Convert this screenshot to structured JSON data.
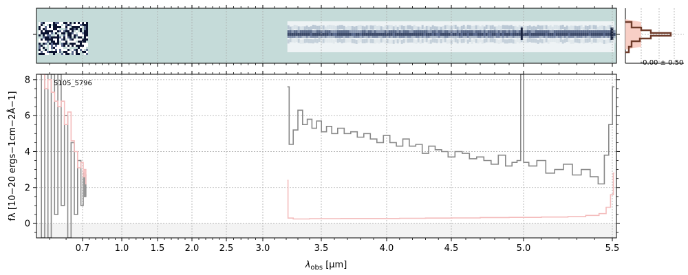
{
  "colors": {
    "flux": "#888888",
    "error": "#f4bcbc",
    "twod_bg": "#c5dbd9",
    "twod_trace": "#3a4868",
    "profile_line": "#6e3b2a",
    "profile_fill": "#f8cfc6",
    "grid": "#aaaaaa",
    "zero_band": "#f3f3f3"
  },
  "chart_data": [
    {
      "type": "line",
      "panel": "spectrum",
      "object_label": "5105_5796",
      "xlabel": "λobs [μm]",
      "xlabel_main": "λ",
      "xlabel_sub": "obs",
      "xlabel_unit": " [μm]",
      "ylabel": "fλ [10−20 ergs−1cm−2Å−1]",
      "xticks": [
        0.7,
        1.0,
        1.5,
        2.0,
        2.5,
        3.0,
        3.5,
        4.0,
        4.5,
        5.0,
        5.5
      ],
      "xtick_labels": [
        "0.7",
        "1.0",
        "1.5",
        "2.0",
        "2.5",
        "3.0",
        "3.5",
        "4.0",
        "4.5",
        "5.0",
        "5.5"
      ],
      "yticks": [
        0,
        2,
        4,
        6,
        8
      ],
      "ytick_labels": [
        "0",
        "2",
        "4",
        "6",
        "8"
      ],
      "ylim": [
        -0.8,
        8.3
      ],
      "xlim": [
        0.56,
        5.52
      ],
      "grid": true,
      "series": [
        {
          "role": "flux",
          "segments": [
            {
              "x": [
                0.57,
                0.58,
                0.59,
                0.6,
                0.61,
                0.62,
                0.63,
                0.64,
                0.65,
                0.66,
                0.67,
                0.68,
                0.69,
                0.7,
                0.71,
                0.72,
                0.73
              ],
              "y": [
                8.3,
                -0.8,
                8.3,
                -0.8,
                8.3,
                0.5,
                8.3,
                1.0,
                6.0,
                -0.8,
                4.5,
                0.5,
                3.5,
                1.0,
                2.8,
                1.5,
                2.7
              ]
            },
            {
              "x": [
                3.21,
                3.24,
                3.28,
                3.32,
                3.36,
                3.4,
                3.44,
                3.48,
                3.52,
                3.56,
                3.6,
                3.65,
                3.7,
                3.75,
                3.8,
                3.85,
                3.9,
                3.95,
                4.0,
                4.05,
                4.1,
                4.15,
                4.2,
                4.25,
                4.3,
                4.35,
                4.4,
                4.45,
                4.5,
                4.55,
                4.6,
                4.65,
                4.7,
                4.75,
                4.8,
                4.85,
                4.9,
                4.94,
                4.97,
                4.99,
                5.01,
                5.05,
                5.1,
                5.15,
                5.2,
                5.25,
                5.3,
                5.35,
                5.4,
                5.44,
                5.47,
                5.49,
                5.51
              ],
              "y": [
                7.6,
                4.4,
                5.2,
                6.3,
                5.5,
                5.8,
                5.3,
                5.7,
                5.1,
                5.4,
                5.0,
                5.3,
                5.0,
                5.1,
                4.8,
                5.0,
                4.7,
                4.5,
                4.9,
                4.5,
                4.3,
                4.7,
                4.3,
                4.4,
                3.9,
                4.3,
                4.1,
                4.0,
                3.7,
                4.0,
                3.9,
                3.6,
                3.7,
                3.5,
                3.3,
                3.8,
                3.2,
                3.4,
                3.5,
                8.3,
                3.4,
                3.2,
                3.5,
                2.8,
                3.0,
                3.3,
                2.7,
                3.0,
                2.6,
                2.2,
                3.8,
                5.5,
                7.6
              ]
            }
          ]
        },
        {
          "role": "error",
          "segments": [
            {
              "x": [
                0.57,
                0.58,
                0.59,
                0.6,
                0.61,
                0.62,
                0.63,
                0.64,
                0.65,
                0.66,
                0.67,
                0.68,
                0.69,
                0.7,
                0.71,
                0.72,
                0.73
              ],
              "y": [
                8.3,
                8.3,
                7.5,
                8.0,
                7.3,
                6.8,
                6.5,
                6.8,
                5.5,
                6.2,
                4.6,
                4.0,
                3.1,
                3.4,
                2.6,
                3.0,
                2.2
              ]
            },
            {
              "x": [
                3.21,
                3.22,
                3.3,
                3.5,
                3.8,
                4.0,
                4.2,
                4.4,
                4.6,
                4.8,
                5.0,
                5.2,
                5.3,
                5.4,
                5.45,
                5.48,
                5.5,
                5.51
              ],
              "y": [
                2.4,
                0.3,
                0.25,
                0.27,
                0.28,
                0.28,
                0.29,
                0.3,
                0.31,
                0.33,
                0.34,
                0.36,
                0.38,
                0.45,
                0.55,
                0.9,
                1.6,
                2.8
              ]
            }
          ]
        }
      ]
    },
    {
      "type": "heatmap",
      "panel": "2d-spectrum",
      "description_free": true
    },
    {
      "type": "line",
      "panel": "profile",
      "annotation": "-0.00 ± 0.50"
    }
  ]
}
